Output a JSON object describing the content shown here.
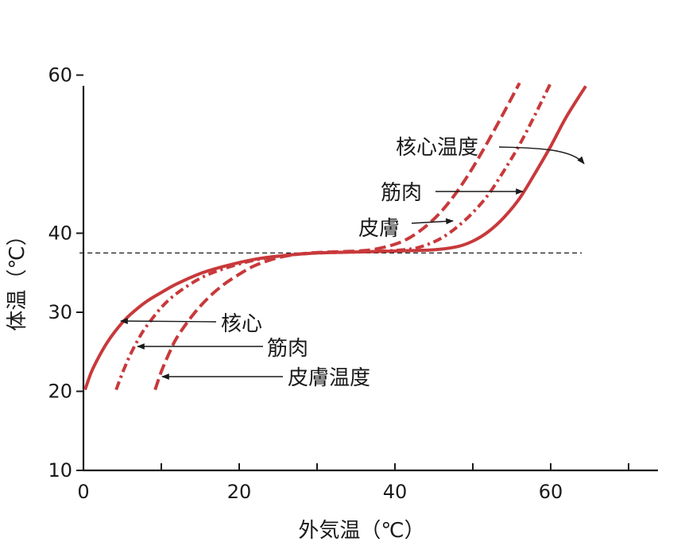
{
  "chart_data": {
    "type": "line",
    "title": "",
    "xlabel": "外気温（℃）",
    "ylabel": "体温（℃）",
    "xlim": [
      0,
      73
    ],
    "ylim": [
      10,
      70
    ],
    "x_ticks": [
      0,
      20,
      40,
      60
    ],
    "x_minor_ticks": [
      10,
      30,
      50,
      70
    ],
    "y_ticks": [
      10,
      20,
      30,
      40,
      60
    ],
    "grid": false,
    "reference_line": {
      "y": 37.5,
      "x_range": [
        -0.5,
        64
      ],
      "style": "dashed"
    },
    "series": [
      {
        "name": "核心",
        "style": "solid",
        "color": "#c8393b",
        "x": [
          0.2,
          1,
          2,
          3,
          4,
          5,
          6,
          8,
          10,
          12,
          15,
          18,
          22,
          26,
          30,
          34,
          38,
          42,
          45,
          48,
          50,
          52,
          54,
          56,
          58,
          60,
          62,
          64.5
        ],
        "y": [
          20.2,
          22.4,
          24.4,
          26.1,
          27.5,
          28.7,
          29.7,
          31.3,
          32.5,
          33.6,
          34.9,
          35.8,
          36.7,
          37.2,
          37.5,
          37.6,
          37.7,
          37.8,
          37.9,
          38.3,
          39.0,
          40.2,
          42.0,
          44.4,
          47.6,
          51.0,
          54.7,
          58.6
        ]
      },
      {
        "name": "筋肉",
        "style": "dashdot",
        "color": "#c8393b",
        "x": [
          4.2,
          5,
          6,
          7,
          8,
          10,
          12,
          15,
          18,
          22,
          26,
          30,
          34,
          38,
          42,
          44,
          46,
          48,
          50,
          52,
          54,
          56,
          58,
          60
        ],
        "y": [
          20.2,
          22.3,
          24.6,
          26.5,
          28.1,
          30.6,
          32.4,
          34.3,
          35.5,
          36.6,
          37.2,
          37.5,
          37.6,
          37.7,
          38.0,
          38.5,
          39.4,
          40.8,
          42.6,
          44.9,
          47.9,
          51.2,
          55.0,
          59.0
        ]
      },
      {
        "name": "皮膚",
        "style": "dashed",
        "color": "#c8393b",
        "x": [
          9.2,
          10,
          11,
          12,
          14,
          16,
          18,
          20,
          22,
          25,
          28,
          31,
          34,
          37,
          40,
          42,
          44,
          46,
          48,
          50,
          52,
          54,
          56
        ],
        "y": [
          20.2,
          22.5,
          24.8,
          26.8,
          29.6,
          31.8,
          33.5,
          34.8,
          35.9,
          36.9,
          37.4,
          37.6,
          37.7,
          37.9,
          38.6,
          39.5,
          40.9,
          42.8,
          45.3,
          48.3,
          51.7,
          55.3,
          59.0
        ]
      }
    ],
    "annotations": {
      "top_core": "核心温度",
      "top_muscle": "筋肉",
      "top_skin": "皮膚",
      "bottom_core": "核心",
      "bottom_muscle": "筋肉",
      "bottom_skin": "皮膚温度"
    }
  }
}
